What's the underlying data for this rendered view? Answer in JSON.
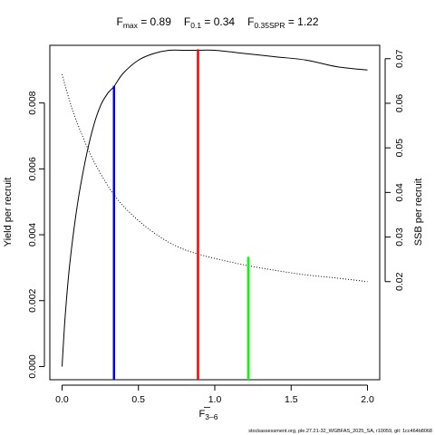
{
  "title": {
    "fmax_main": "F",
    "fmax_sub": "max",
    "fmax_value": " = 0.89",
    "f01_main": "F",
    "f01_sub": "0.1",
    "f01_value": " = 0.34",
    "fspr_main": "F",
    "fspr_sub": "0.35SPR",
    "fspr_value": " = 1.22"
  },
  "footer": "stockassessment.org, ple.27.21-32_WGBFAS_2025_SA, r10059, git: 1cc464b8068",
  "chart_data": {
    "type": "line",
    "xlabel_main": "F",
    "xlabel_sub": "3–6",
    "ylabel_left": "Yield per recruit",
    "ylabel_right": "SSB per recruit",
    "xlim": [
      -0.08,
      2.08
    ],
    "ylim_left": [
      -0.0004,
      0.00975
    ],
    "ylim_right": [
      -0.002,
      0.073
    ],
    "x_ticks": [
      0,
      0.5,
      1,
      1.5,
      2
    ],
    "x_tick_labels": [
      "0.0",
      "0.5",
      "1.0",
      "1.5",
      "2.0"
    ],
    "y_left_ticks": [
      0,
      0.002,
      0.004,
      0.006,
      0.008
    ],
    "y_left_tick_labels": [
      "0.000",
      "0.002",
      "0.004",
      "0.006",
      "0.008"
    ],
    "y_right_ticks": [
      0.02,
      0.03,
      0.04,
      0.05,
      0.06,
      0.07
    ],
    "y_right_tick_labels": [
      "0.02",
      "0.03",
      "0.04",
      "0.05",
      "0.06",
      "0.07"
    ],
    "series": [
      {
        "axis": "left",
        "style": "solid",
        "color": "#000000",
        "x": [
          0,
          0.02,
          0.05,
          0.1,
          0.15,
          0.2,
          0.25,
          0.3,
          0.34,
          0.4,
          0.5,
          0.6,
          0.7,
          0.8,
          0.89,
          1.0,
          1.2,
          1.4,
          1.6,
          1.8,
          2.0
        ],
        "y": [
          0.0,
          0.0015,
          0.0031,
          0.0049,
          0.0062,
          0.0072,
          0.0079,
          0.0083,
          0.0085,
          0.0089,
          0.0093,
          0.0095,
          0.0096,
          0.0096,
          0.0096,
          0.0096,
          0.0095,
          0.0094,
          0.0093,
          0.0091,
          0.009
        ]
      },
      {
        "axis": "right",
        "style": "dotted",
        "color": "#000000",
        "x": [
          0,
          0.05,
          0.1,
          0.2,
          0.3,
          0.34,
          0.4,
          0.5,
          0.6,
          0.7,
          0.8,
          0.89,
          1.0,
          1.2,
          1.4,
          1.6,
          1.8,
          2.0
        ],
        "y": [
          0.0665,
          0.0605,
          0.0555,
          0.0475,
          0.0415,
          0.0395,
          0.037,
          0.0337,
          0.031,
          0.0288,
          0.0272,
          0.0262,
          0.0252,
          0.0237,
          0.0225,
          0.0215,
          0.0208,
          0.02
        ]
      }
    ],
    "reference_lines": [
      {
        "name": "F0.1",
        "x": 0.34,
        "y_top": 0.00852,
        "color": "#0000ff"
      },
      {
        "name": "Fmax",
        "x": 0.89,
        "y_top": 0.00963,
        "color": "#ff0000"
      },
      {
        "name": "F0.35SPR",
        "x": 1.22,
        "y_top": 0.00333,
        "color": "#00ff00"
      }
    ]
  }
}
